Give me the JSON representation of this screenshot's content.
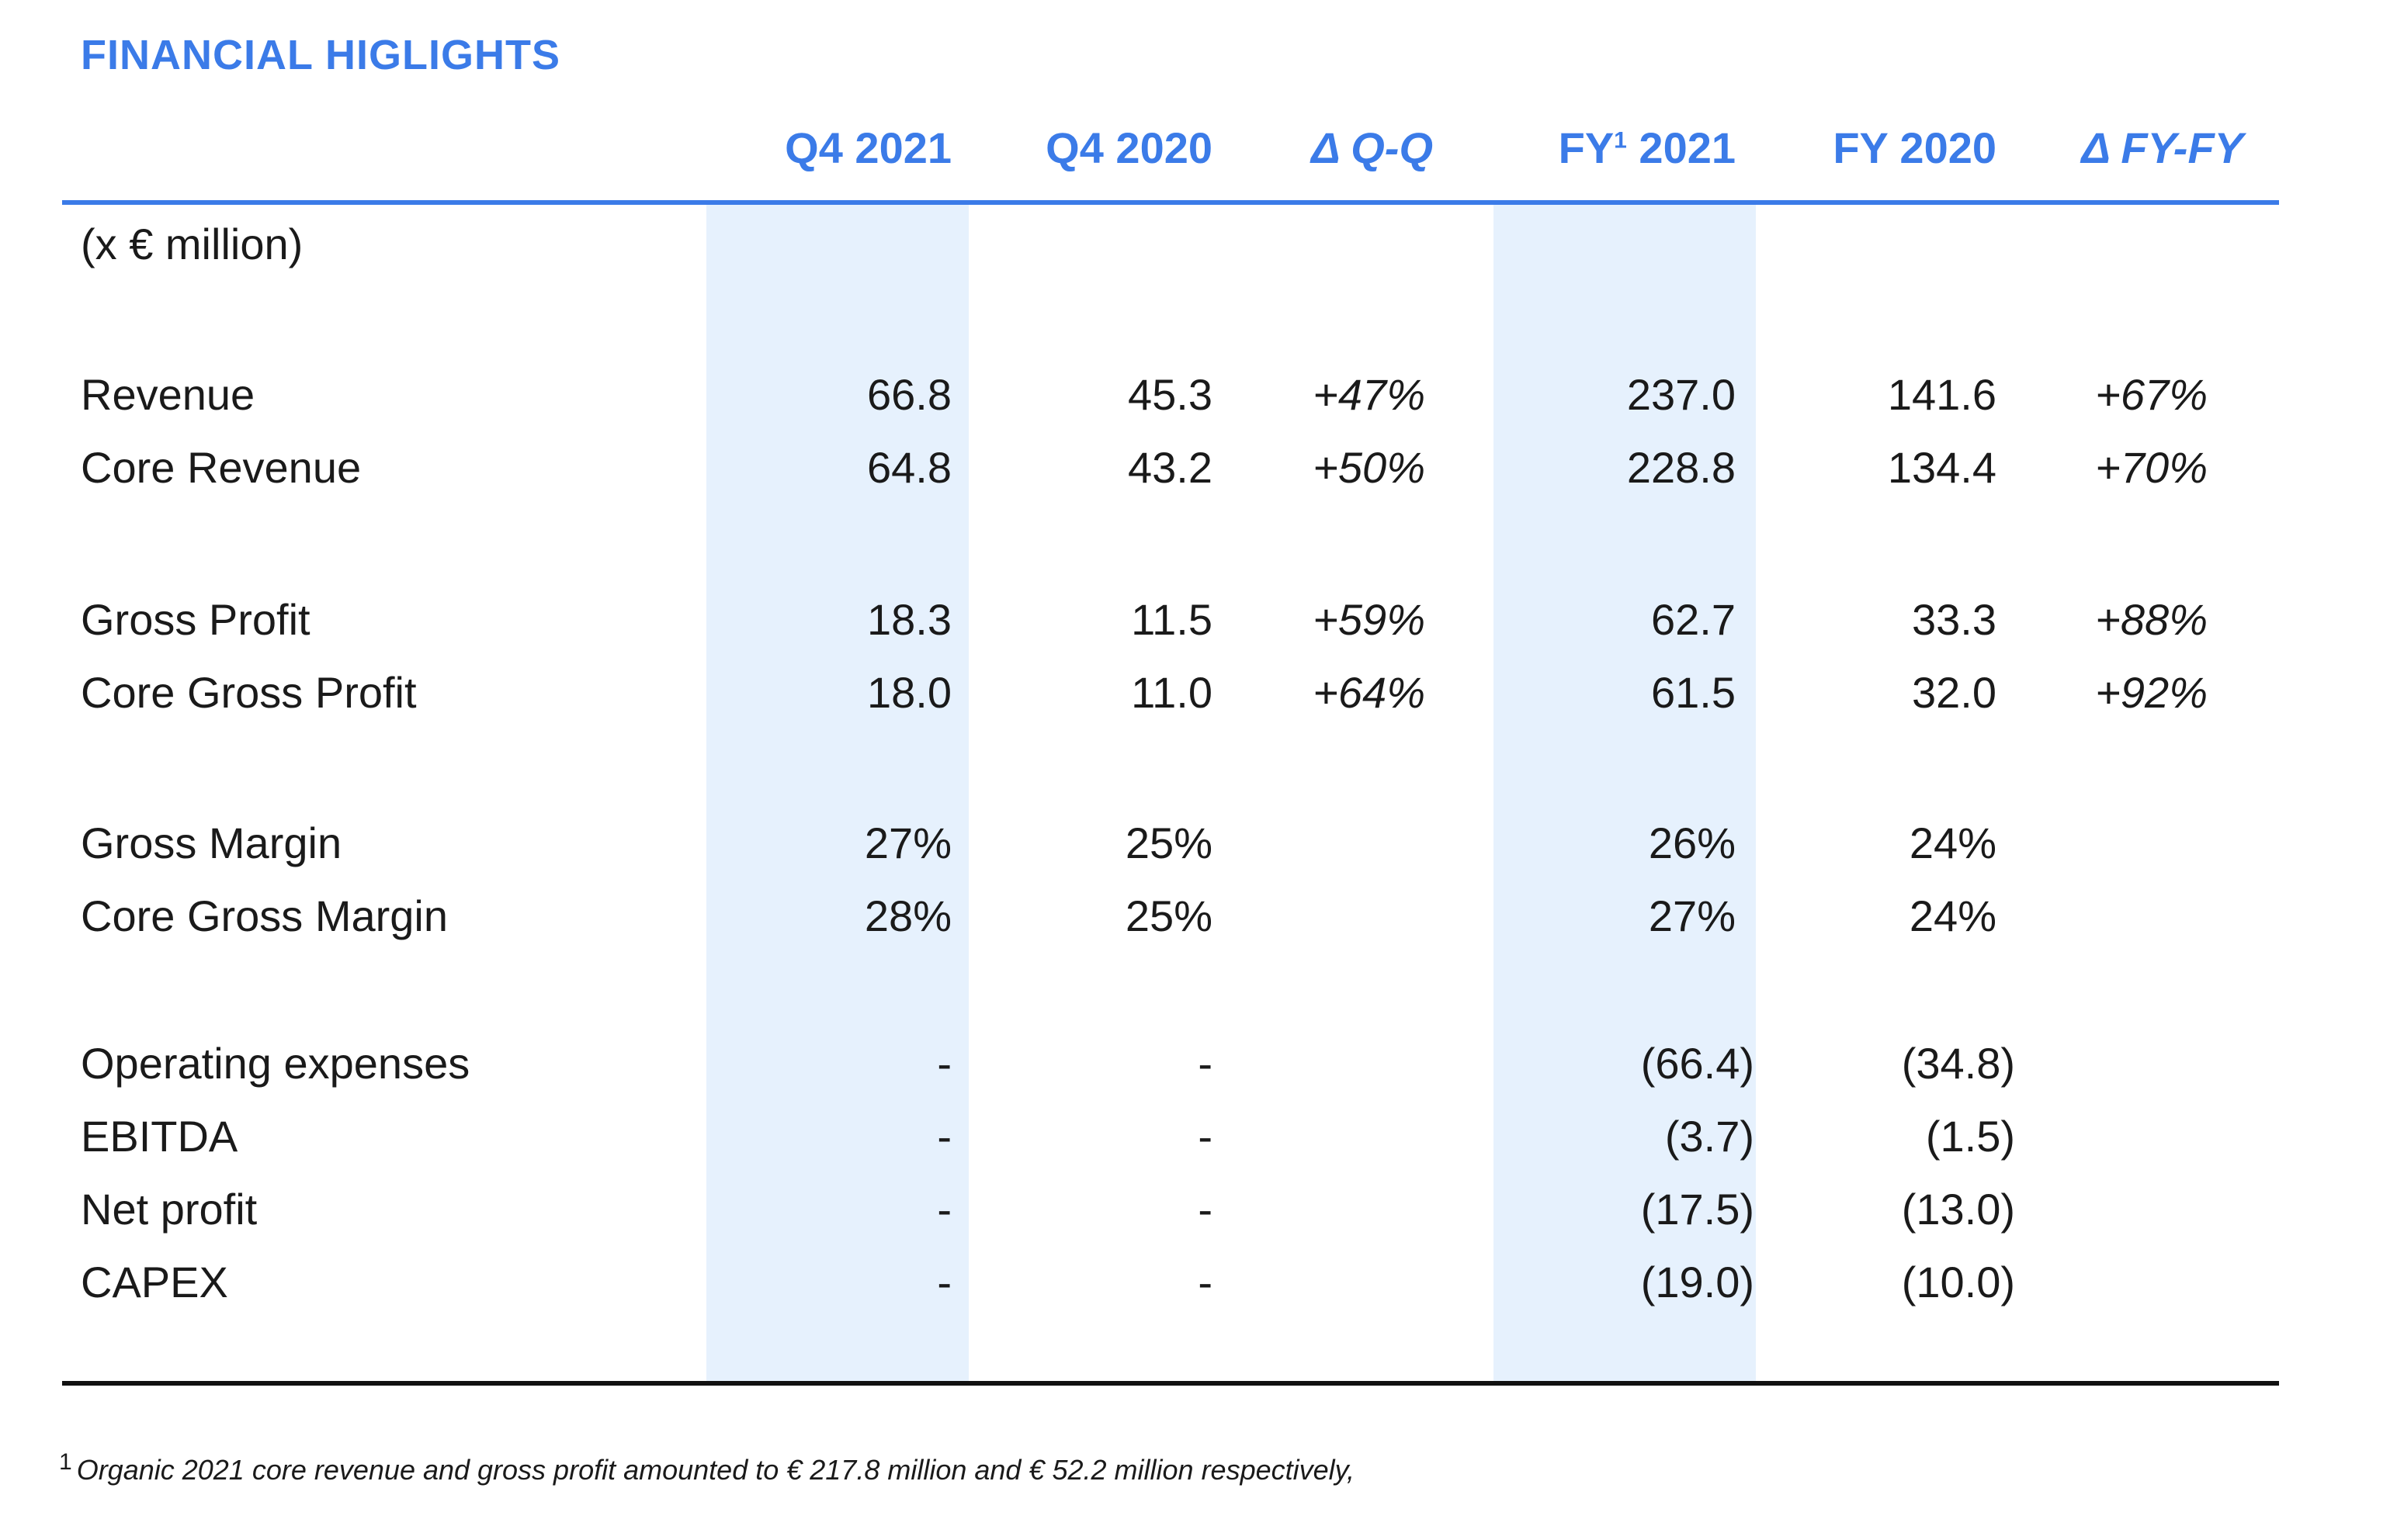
{
  "title": "FINANCIAL HIGLIGHTS",
  "unit_label": "(x € million)",
  "columns": {
    "q4_2021": "Q4 2021",
    "q4_2020": "Q4 2020",
    "delta_qq": "Δ Q-Q",
    "fy2021_prefix": "FY",
    "fy2021_sup": "1",
    "fy2021_suffix": " 2021",
    "fy_2020": "FY 2020",
    "delta_fy": "Δ FY-FY"
  },
  "rows": [
    {
      "label": "Revenue",
      "q4_2021": "66.8",
      "q4_2020": "45.3",
      "delta_qq": "+47%",
      "fy_2021": "237.0",
      "fy_2020": "141.6",
      "delta_fy": "+67%"
    },
    {
      "label": "Core Revenue",
      "q4_2021": "64.8",
      "q4_2020": "43.2",
      "delta_qq": "+50%",
      "fy_2021": "228.8",
      "fy_2020": "134.4",
      "delta_fy": "+70%"
    },
    {
      "label": "Gross Profit",
      "q4_2021": "18.3",
      "q4_2020": "11.5",
      "delta_qq": "+59%",
      "fy_2021": "62.7",
      "fy_2020": "33.3",
      "delta_fy": "+88%"
    },
    {
      "label": "Core Gross Profit",
      "q4_2021": "18.0",
      "q4_2020": "11.0",
      "delta_qq": "+64%",
      "fy_2021": "61.5",
      "fy_2020": "32.0",
      "delta_fy": "+92%"
    },
    {
      "label": "Gross Margin",
      "q4_2021": "27%",
      "q4_2020": "25%",
      "delta_qq": "",
      "fy_2021": "26%",
      "fy_2020": "24%",
      "delta_fy": ""
    },
    {
      "label": "Core Gross Margin",
      "q4_2021": "28%",
      "q4_2020": "25%",
      "delta_qq": "",
      "fy_2021": "27%",
      "fy_2020": "24%",
      "delta_fy": ""
    },
    {
      "label": "Operating expenses",
      "q4_2021": "-",
      "q4_2020": "-",
      "delta_qq": "",
      "fy_2021": "(66.4)",
      "fy_2020": "(34.8)",
      "delta_fy": ""
    },
    {
      "label": "EBITDA",
      "q4_2021": "-",
      "q4_2020": "-",
      "delta_qq": "",
      "fy_2021": "(3.7)",
      "fy_2020": "(1.5)",
      "delta_fy": ""
    },
    {
      "label": "Net profit",
      "q4_2021": "-",
      "q4_2020": "-",
      "delta_qq": "",
      "fy_2021": "(17.5)",
      "fy_2020": "(13.0)",
      "delta_fy": ""
    },
    {
      "label": "CAPEX",
      "q4_2021": "-",
      "q4_2020": "-",
      "delta_qq": "",
      "fy_2021": "(19.0)",
      "fy_2020": "(10.0)",
      "delta_fy": ""
    }
  ],
  "footnote": {
    "marker": "1",
    "text": "Organic 2021 core revenue and gross profit amounted to € 217.8 million and € 52.2 million respectively,"
  }
}
